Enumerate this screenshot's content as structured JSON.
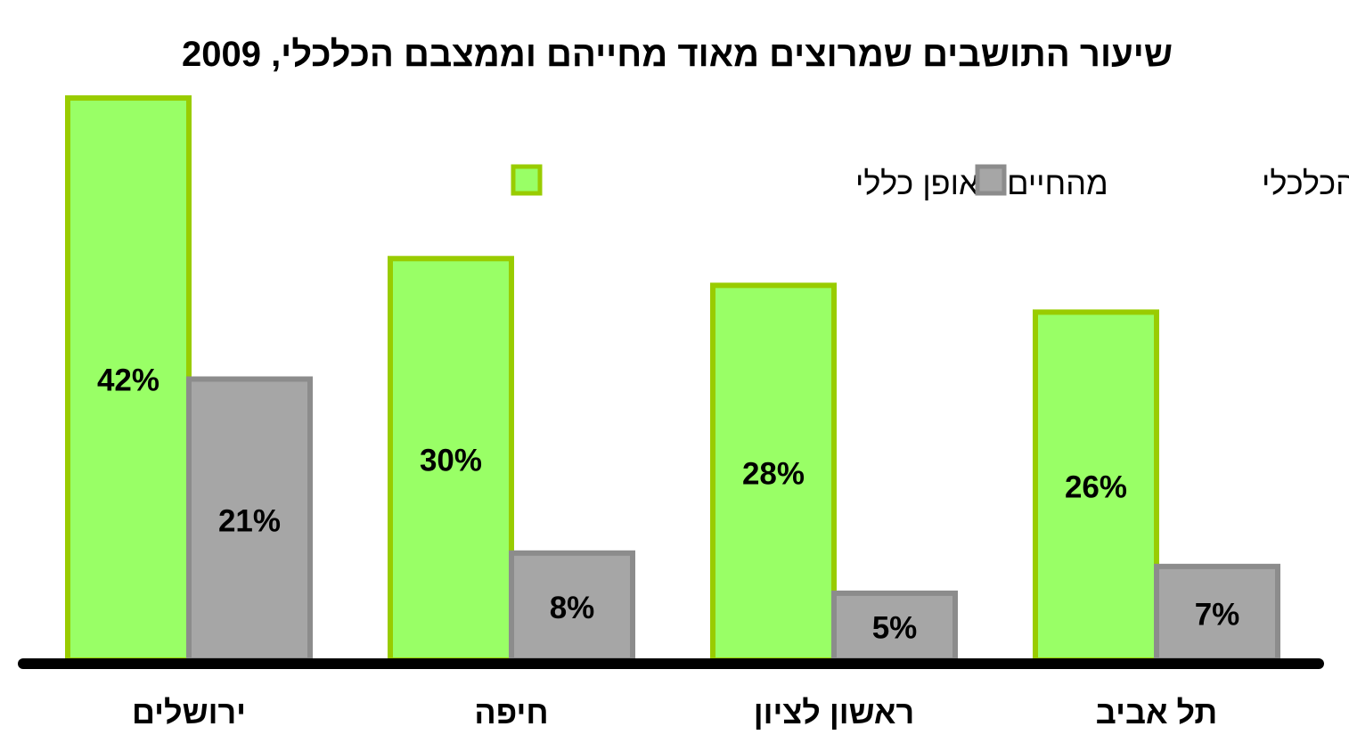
{
  "chart_data": {
    "type": "bar",
    "title": "שיעור התושבים שמרוצים מאוד מחייהם וממצבם הכלכלי, 2009",
    "categories": [
      "ירושלים",
      "חיפה",
      "ראשון לציון",
      "תל אביב"
    ],
    "series": [
      {
        "name": "מהחיים באופן כללי",
        "values": [
          42,
          30,
          28,
          26
        ],
        "labels": [
          "42%",
          "30%",
          "28%",
          "26%"
        ],
        "fill": "#99ff66",
        "stroke": "#99cc00"
      },
      {
        "name": "מהמצב הכלכלי",
        "values": [
          21,
          8,
          5,
          7
        ],
        "labels": [
          "21%",
          "8%",
          "5%",
          "7%"
        ],
        "fill": "#a6a6a6",
        "stroke": "#8c8c8c"
      }
    ],
    "xlabel": "",
    "ylabel": "",
    "ylim": [
      0,
      42
    ],
    "grid": false,
    "legend_position": "top-right"
  },
  "colors": {
    "axis": "#000000",
    "text": "#000000",
    "background": "#ffffff"
  }
}
